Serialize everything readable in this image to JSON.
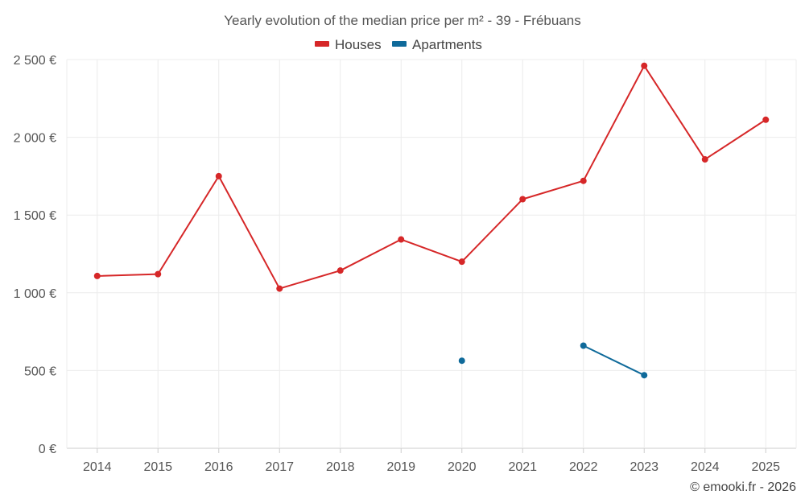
{
  "chart_data": {
    "type": "line",
    "title": "Yearly evolution of the median price per m² - 39 - Frébuans",
    "categories": [
      "2014",
      "2015",
      "2016",
      "2017",
      "2018",
      "2019",
      "2020",
      "2021",
      "2022",
      "2023",
      "2024",
      "2025"
    ],
    "series": [
      {
        "name": "Houses",
        "color": "#d62728",
        "values": [
          1108,
          1120,
          1750,
          1027,
          1143,
          1343,
          1200,
          1602,
          1720,
          2460,
          1858,
          2113
        ]
      },
      {
        "name": "Apartments",
        "color": "#0f6a9a",
        "values": [
          null,
          null,
          null,
          null,
          null,
          null,
          563,
          null,
          660,
          470,
          null,
          null
        ]
      }
    ],
    "y_ticks": [
      0,
      500,
      1000,
      1500,
      2000,
      2500
    ],
    "y_tick_labels": [
      "0 €",
      "500 €",
      "1 000 €",
      "1 500 €",
      "2 000 €",
      "2 500 €"
    ],
    "ylim": [
      0,
      2500
    ],
    "xlabel": "",
    "ylabel": "",
    "legend_position": "top-center"
  },
  "credit": "© emooki.fr - 2026"
}
